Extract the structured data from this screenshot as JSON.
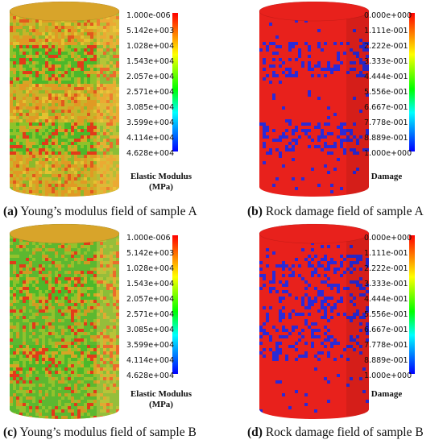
{
  "colors": {
    "damaged_red": "#e8211c",
    "crack_blue": "#2a2ad8",
    "colorbar_top": "#ff0000",
    "colorbar_bottom": "#0000ff"
  },
  "panels": [
    {
      "id": "a",
      "field": "elastic-modulus",
      "colorbar_ticks": [
        "1.000e-006",
        "5.142e+003",
        "1.028e+004",
        "1.543e+004",
        "2.057e+004",
        "2.571e+004",
        "3.085e+004",
        "3.599e+004",
        "4.114e+004",
        "4.628e+004"
      ],
      "legend_title_line1": "Elastic Modulus",
      "legend_title_line2": "(MPa)",
      "caption_letter": "(a)",
      "caption_text": " Young’s modulus field of sample A"
    },
    {
      "id": "b",
      "field": "damage",
      "colorbar_ticks": [
        "0.000e+000",
        "1.111e-001",
        "2.222e-001",
        "3.333e-001",
        "4.444e-001",
        "5.556e-001",
        "6.667e-001",
        "7.778e-001",
        "8.889e-001",
        "1.000e+000"
      ],
      "legend_title_line1": "Damage",
      "legend_title_line2": "",
      "caption_letter": "(b)",
      "caption_text": " Rock damage field of sample A"
    },
    {
      "id": "c",
      "field": "elastic-modulus",
      "colorbar_ticks": [
        "1.000e-006",
        "5.142e+003",
        "1.028e+004",
        "1.543e+004",
        "2.057e+004",
        "2.571e+004",
        "3.085e+004",
        "3.599e+004",
        "4.114e+004",
        "4.628e+004"
      ],
      "legend_title_line1": "Elastic Modulus",
      "legend_title_line2": "(MPa)",
      "caption_letter": "(c)",
      "caption_text": " Young’s modulus field of sample B"
    },
    {
      "id": "d",
      "field": "damage",
      "colorbar_ticks": [
        "0.000e+000",
        "1.111e-001",
        "2.222e-001",
        "3.333e-001",
        "4.444e-001",
        "5.556e-001",
        "6.667e-001",
        "7.778e-001",
        "8.889e-001",
        "1.000e+000"
      ],
      "legend_title_line1": "Damage",
      "legend_title_line2": "",
      "caption_letter": "(d)",
      "caption_text": " Rock damage field of sample B"
    }
  ]
}
